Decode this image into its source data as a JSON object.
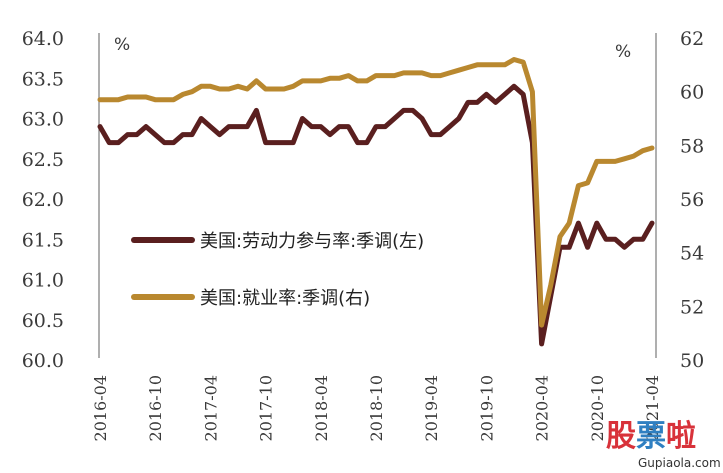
{
  "chart_data": {
    "type": "line",
    "left_axis": {
      "unit": "%",
      "ylim": [
        60.0,
        64.0
      ],
      "ticks": [
        "64.0",
        "63.5",
        "63.0",
        "62.5",
        "62.0",
        "61.5",
        "61.0",
        "60.5",
        "60.0"
      ]
    },
    "right_axis": {
      "unit": "%",
      "ylim": [
        50,
        62
      ],
      "ticks": [
        "62",
        "60",
        "58",
        "56",
        "54",
        "52",
        "50"
      ]
    },
    "x_ticks": [
      "2016-04",
      "2016-10",
      "2017-04",
      "2017-10",
      "2018-04",
      "2018-10",
      "2019-04",
      "2019-10",
      "2020-04",
      "2020-10",
      "2021-04"
    ],
    "legend_placement": "center-left",
    "series": [
      {
        "name": "美国:劳动力参与率:季调(左)",
        "axis": "left",
        "color": "#5a1f1f",
        "values": [
          [
            "2016-04",
            62.9
          ],
          [
            "2016-05",
            62.7
          ],
          [
            "2016-06",
            62.7
          ],
          [
            "2016-07",
            62.8
          ],
          [
            "2016-08",
            62.8
          ],
          [
            "2016-09",
            62.9
          ],
          [
            "2016-10",
            62.8
          ],
          [
            "2016-11",
            62.7
          ],
          [
            "2016-12",
            62.7
          ],
          [
            "2017-01",
            62.8
          ],
          [
            "2017-02",
            62.8
          ],
          [
            "2017-03",
            63.0
          ],
          [
            "2017-04",
            62.9
          ],
          [
            "2017-05",
            62.8
          ],
          [
            "2017-06",
            62.9
          ],
          [
            "2017-07",
            62.9
          ],
          [
            "2017-08",
            62.9
          ],
          [
            "2017-09",
            63.1
          ],
          [
            "2017-10",
            62.7
          ],
          [
            "2017-11",
            62.7
          ],
          [
            "2017-12",
            62.7
          ],
          [
            "2018-01",
            62.7
          ],
          [
            "2018-02",
            63.0
          ],
          [
            "2018-03",
            62.9
          ],
          [
            "2018-04",
            62.9
          ],
          [
            "2018-05",
            62.8
          ],
          [
            "2018-06",
            62.9
          ],
          [
            "2018-07",
            62.9
          ],
          [
            "2018-08",
            62.7
          ],
          [
            "2018-09",
            62.7
          ],
          [
            "2018-10",
            62.9
          ],
          [
            "2018-11",
            62.9
          ],
          [
            "2018-12",
            63.0
          ],
          [
            "2019-01",
            63.1
          ],
          [
            "2019-02",
            63.1
          ],
          [
            "2019-03",
            63.0
          ],
          [
            "2019-04",
            62.8
          ],
          [
            "2019-05",
            62.8
          ],
          [
            "2019-06",
            62.9
          ],
          [
            "2019-07",
            63.0
          ],
          [
            "2019-08",
            63.2
          ],
          [
            "2019-09",
            63.2
          ],
          [
            "2019-10",
            63.3
          ],
          [
            "2019-11",
            63.2
          ],
          [
            "2019-12",
            63.3
          ],
          [
            "2020-01",
            63.4
          ],
          [
            "2020-02",
            63.3
          ],
          [
            "2020-03",
            62.7
          ],
          [
            "2020-04",
            60.2
          ],
          [
            "2020-05",
            60.8
          ],
          [
            "2020-06",
            61.4
          ],
          [
            "2020-07",
            61.4
          ],
          [
            "2020-08",
            61.7
          ],
          [
            "2020-09",
            61.4
          ],
          [
            "2020-10",
            61.7
          ],
          [
            "2020-11",
            61.5
          ],
          [
            "2020-12",
            61.5
          ],
          [
            "2021-01",
            61.4
          ],
          [
            "2021-02",
            61.5
          ],
          [
            "2021-03",
            61.5
          ],
          [
            "2021-04",
            61.7
          ]
        ]
      },
      {
        "name": "美国:就业率:季调(右)",
        "axis": "right",
        "color": "#b9882f",
        "values": [
          [
            "2016-04",
            59.7
          ],
          [
            "2016-05",
            59.7
          ],
          [
            "2016-06",
            59.7
          ],
          [
            "2016-07",
            59.8
          ],
          [
            "2016-08",
            59.8
          ],
          [
            "2016-09",
            59.8
          ],
          [
            "2016-10",
            59.7
          ],
          [
            "2016-11",
            59.7
          ],
          [
            "2016-12",
            59.7
          ],
          [
            "2017-01",
            59.9
          ],
          [
            "2017-02",
            60.0
          ],
          [
            "2017-03",
            60.2
          ],
          [
            "2017-04",
            60.2
          ],
          [
            "2017-05",
            60.1
          ],
          [
            "2017-06",
            60.1
          ],
          [
            "2017-07",
            60.2
          ],
          [
            "2017-08",
            60.1
          ],
          [
            "2017-09",
            60.4
          ],
          [
            "2017-10",
            60.1
          ],
          [
            "2017-11",
            60.1
          ],
          [
            "2017-12",
            60.1
          ],
          [
            "2018-01",
            60.2
          ],
          [
            "2018-02",
            60.4
          ],
          [
            "2018-03",
            60.4
          ],
          [
            "2018-04",
            60.4
          ],
          [
            "2018-05",
            60.5
          ],
          [
            "2018-06",
            60.5
          ],
          [
            "2018-07",
            60.6
          ],
          [
            "2018-08",
            60.4
          ],
          [
            "2018-09",
            60.4
          ],
          [
            "2018-10",
            60.6
          ],
          [
            "2018-11",
            60.6
          ],
          [
            "2018-12",
            60.6
          ],
          [
            "2019-01",
            60.7
          ],
          [
            "2019-02",
            60.7
          ],
          [
            "2019-03",
            60.7
          ],
          [
            "2019-04",
            60.6
          ],
          [
            "2019-05",
            60.6
          ],
          [
            "2019-06",
            60.7
          ],
          [
            "2019-07",
            60.8
          ],
          [
            "2019-08",
            60.9
          ],
          [
            "2019-09",
            61.0
          ],
          [
            "2019-10",
            61.0
          ],
          [
            "2019-11",
            61.0
          ],
          [
            "2019-12",
            61.0
          ],
          [
            "2020-01",
            61.2
          ],
          [
            "2020-02",
            61.1
          ],
          [
            "2020-03",
            60.0
          ],
          [
            "2020-04",
            51.3
          ],
          [
            "2020-05",
            52.8
          ],
          [
            "2020-06",
            54.6
          ],
          [
            "2020-07",
            55.1
          ],
          [
            "2020-08",
            56.5
          ],
          [
            "2020-09",
            56.6
          ],
          [
            "2020-10",
            57.4
          ],
          [
            "2020-11",
            57.4
          ],
          [
            "2020-12",
            57.4
          ],
          [
            "2021-01",
            57.5
          ],
          [
            "2021-02",
            57.6
          ],
          [
            "2021-03",
            57.8
          ],
          [
            "2021-04",
            57.9
          ]
        ]
      }
    ]
  },
  "watermark": {
    "big": "股票啦",
    "small": "Gupiaola.com",
    "colors": [
      "#d8323a",
      "#2f7fc1",
      "#d8323a"
    ]
  }
}
